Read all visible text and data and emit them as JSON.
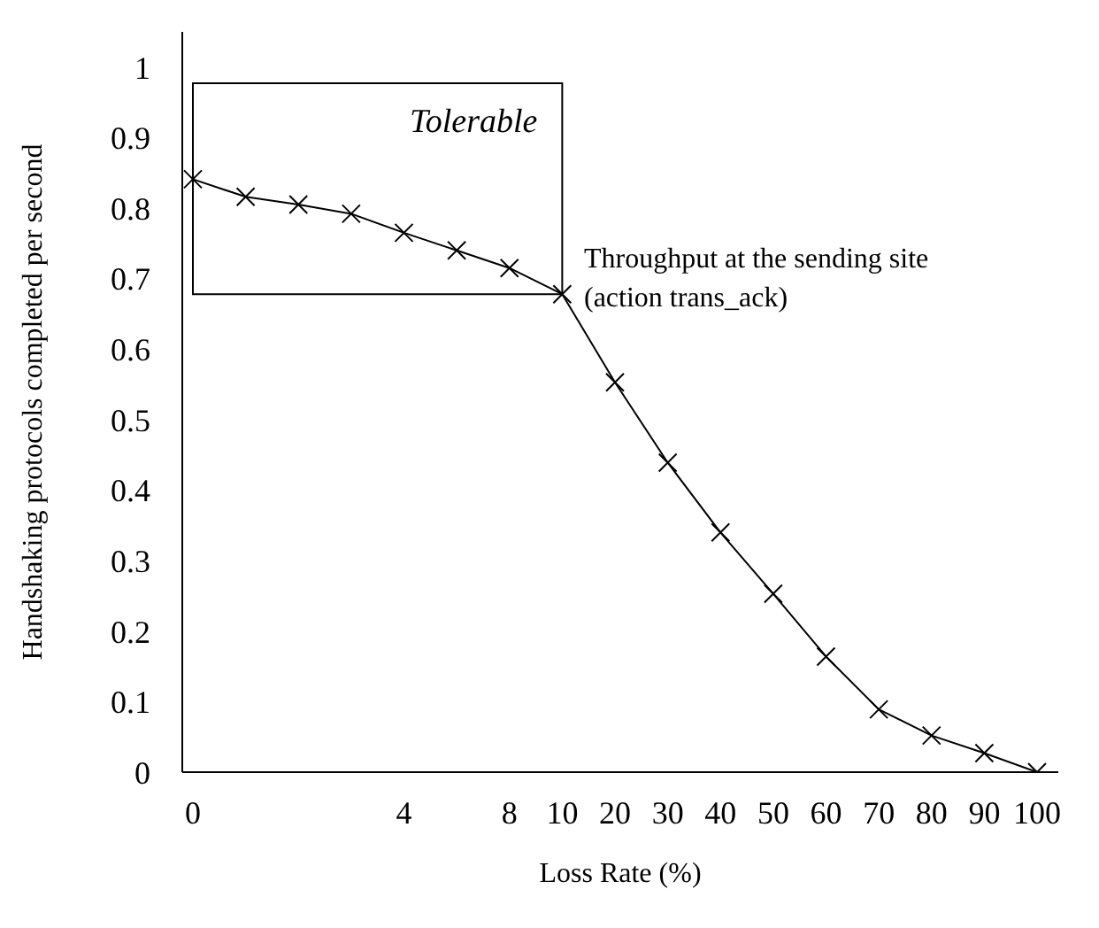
{
  "chart_data": {
    "type": "line",
    "xlabel": "Loss Rate (%)",
    "ylabel": "Handshaking protocols completed per second",
    "categories": [
      "0",
      null,
      null,
      null,
      "4",
      null,
      "8",
      "10",
      "20",
      "30",
      "40",
      "50",
      "60",
      "70",
      "80",
      "90",
      "100"
    ],
    "series": [
      {
        "name": "Throughput at the sending site (action trans_ack)",
        "color": "#000000",
        "values": [
          0.841,
          0.816,
          0.805,
          0.792,
          0.765,
          0.74,
          0.715,
          0.678,
          0.553,
          0.439,
          0.34,
          0.253,
          0.164,
          0.089,
          0.052,
          0.027,
          0
        ]
      }
    ],
    "ylim": [
      0,
      1.05
    ],
    "yticks": [
      0,
      0.1,
      0.2,
      0.3,
      0.4,
      0.5,
      0.6,
      0.7,
      0.8,
      0.9,
      1
    ],
    "bands": [
      {
        "axis": "y",
        "from": 0.678,
        "to": 0.977,
        "label": "Tolerable",
        "color": "#ffffff"
      }
    ],
    "marker": "cross",
    "line_style": "solid"
  }
}
